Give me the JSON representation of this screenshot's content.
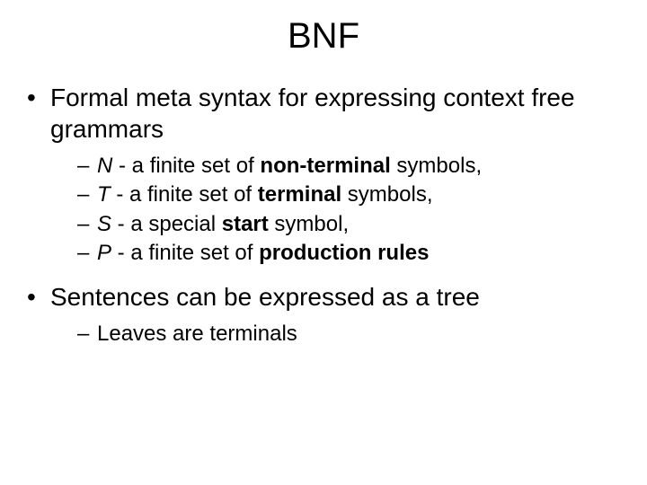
{
  "title": "BNF",
  "bullets": {
    "b1": "Formal meta syntax for expressing context free grammars",
    "b1_sub": {
      "n_sym": "N",
      "n_pre": " - a finite set of ",
      "n_bold": "non-terminal",
      "n_post": " symbols,",
      "t_sym": "T",
      "t_pre": " - a finite set of ",
      "t_bold": "terminal",
      "t_post": " symbols,",
      "s_sym": "S",
      "s_pre": " - a special ",
      "s_bold": "start",
      "s_post": " symbol,",
      "p_sym": "P",
      "p_pre": " - a finite set of ",
      "p_bold": "production rules",
      "p_post": ""
    },
    "b2": "Sentences can be expressed as a tree",
    "b2_sub": {
      "leaves": "Leaves are terminals"
    }
  },
  "style": {
    "background": "#ffffff",
    "text_color": "#000000",
    "title_fontsize": 40,
    "bullet_fontsize": 28,
    "subbullet_fontsize": 24,
    "font_family": "Arial"
  }
}
